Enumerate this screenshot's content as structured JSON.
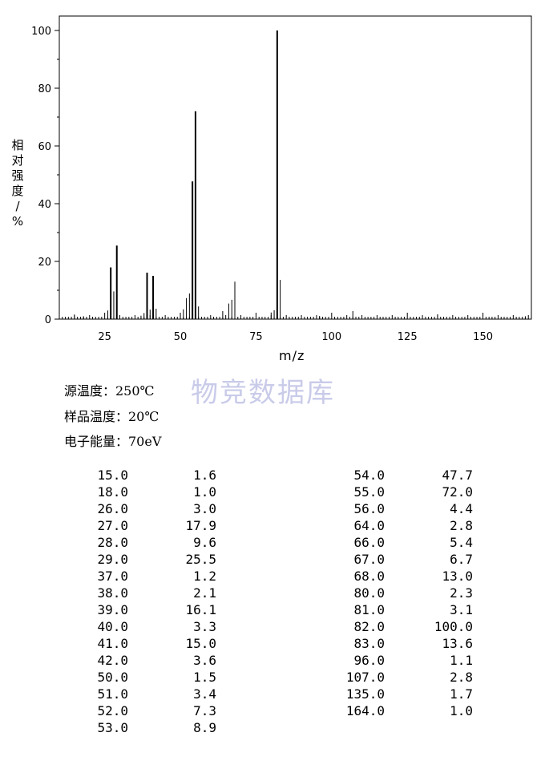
{
  "chart_data": {
    "type": "bar",
    "xlabel": "m/z",
    "ylabel": "相对强度/%",
    "xlim": [
      10,
      166
    ],
    "ylim": [
      0,
      100
    ],
    "x_ticks": [
      25,
      50,
      75,
      100,
      125,
      150
    ],
    "y_ticks": [
      0,
      20,
      40,
      60,
      80,
      100
    ],
    "grid": false,
    "peaks": [
      {
        "mz": 15.0,
        "intensity": 1.6
      },
      {
        "mz": 18.0,
        "intensity": 1.0
      },
      {
        "mz": 26.0,
        "intensity": 3.0
      },
      {
        "mz": 27.0,
        "intensity": 17.9
      },
      {
        "mz": 28.0,
        "intensity": 9.6
      },
      {
        "mz": 29.0,
        "intensity": 25.5
      },
      {
        "mz": 37.0,
        "intensity": 1.2
      },
      {
        "mz": 38.0,
        "intensity": 2.1
      },
      {
        "mz": 39.0,
        "intensity": 16.1
      },
      {
        "mz": 40.0,
        "intensity": 3.3
      },
      {
        "mz": 41.0,
        "intensity": 15.0
      },
      {
        "mz": 42.0,
        "intensity": 3.6
      },
      {
        "mz": 50.0,
        "intensity": 1.5
      },
      {
        "mz": 51.0,
        "intensity": 3.4
      },
      {
        "mz": 52.0,
        "intensity": 7.3
      },
      {
        "mz": 53.0,
        "intensity": 8.9
      },
      {
        "mz": 54.0,
        "intensity": 47.7
      },
      {
        "mz": 55.0,
        "intensity": 72.0
      },
      {
        "mz": 56.0,
        "intensity": 4.4
      },
      {
        "mz": 64.0,
        "intensity": 2.8
      },
      {
        "mz": 66.0,
        "intensity": 5.4
      },
      {
        "mz": 67.0,
        "intensity": 6.7
      },
      {
        "mz": 68.0,
        "intensity": 13.0
      },
      {
        "mz": 80.0,
        "intensity": 2.3
      },
      {
        "mz": 81.0,
        "intensity": 3.1
      },
      {
        "mz": 82.0,
        "intensity": 100.0
      },
      {
        "mz": 83.0,
        "intensity": 13.6
      },
      {
        "mz": 96.0,
        "intensity": 1.1
      },
      {
        "mz": 107.0,
        "intensity": 2.8
      },
      {
        "mz": 135.0,
        "intensity": 1.7
      },
      {
        "mz": 164.0,
        "intensity": 1.0
      }
    ]
  },
  "watermark": "物竞数据库",
  "conditions": {
    "source_temp": "源温度：250℃",
    "sample_temp": "样品温度：20℃",
    "electron_energy": "电子能量：70eV"
  },
  "table": {
    "left": [
      [
        "15.0",
        "1.6"
      ],
      [
        "18.0",
        "1.0"
      ],
      [
        "26.0",
        "3.0"
      ],
      [
        "27.0",
        "17.9"
      ],
      [
        "28.0",
        "9.6"
      ],
      [
        "29.0",
        "25.5"
      ],
      [
        "37.0",
        "1.2"
      ],
      [
        "38.0",
        "2.1"
      ],
      [
        "39.0",
        "16.1"
      ],
      [
        "40.0",
        "3.3"
      ],
      [
        "41.0",
        "15.0"
      ],
      [
        "42.0",
        "3.6"
      ],
      [
        "50.0",
        "1.5"
      ],
      [
        "51.0",
        "3.4"
      ],
      [
        "52.0",
        "7.3"
      ],
      [
        "53.0",
        "8.9"
      ]
    ],
    "right": [
      [
        "54.0",
        "47.7"
      ],
      [
        "55.0",
        "72.0"
      ],
      [
        "56.0",
        "4.4"
      ],
      [
        "64.0",
        "2.8"
      ],
      [
        "66.0",
        "5.4"
      ],
      [
        "67.0",
        "6.7"
      ],
      [
        "68.0",
        "13.0"
      ],
      [
        "80.0",
        "2.3"
      ],
      [
        "81.0",
        "3.1"
      ],
      [
        "82.0",
        "100.0"
      ],
      [
        "83.0",
        "13.6"
      ],
      [
        "96.0",
        "1.1"
      ],
      [
        "107.0",
        "2.8"
      ],
      [
        "135.0",
        "1.7"
      ],
      [
        "164.0",
        "1.0"
      ]
    ]
  }
}
